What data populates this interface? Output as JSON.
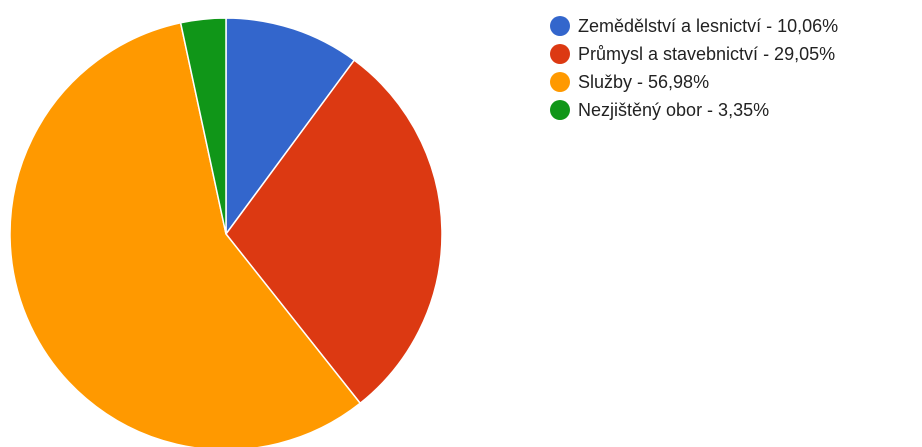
{
  "chart_data": {
    "type": "pie",
    "title": "",
    "legend_position": "right",
    "start_angle_deg": 0,
    "slices": [
      {
        "label": "Zemědělství a lesnictví - 10,06%",
        "value": 10.06,
        "color": "#3366cc"
      },
      {
        "label": "Průmysl a stavebnictví - 29,05%",
        "value": 29.05,
        "color": "#dc3912"
      },
      {
        "label": "Služby - 56,98%",
        "value": 56.98,
        "color": "#ff9900"
      },
      {
        "label": "Nezjištěný obor - 3,35%",
        "value": 3.35,
        "color": "#109618"
      }
    ]
  }
}
